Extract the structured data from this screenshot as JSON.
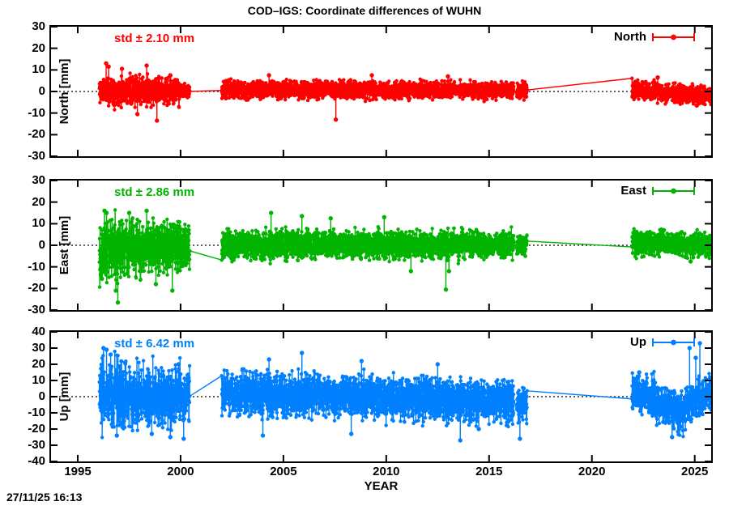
{
  "title": "COD–IGS: Coordinate differences of WUHN",
  "timestamp": "27/11/25 16:13",
  "chart_data": {
    "type": "scatter",
    "title": "COD–IGS: Coordinate differences of WUHN",
    "xlabel": "YEAR",
    "xlim": [
      1993.7,
      2025.8
    ],
    "xticks": [
      "1995",
      "2000",
      "2005",
      "2010",
      "2015",
      "2020",
      "2025"
    ],
    "xtick_values": [
      1995,
      2000,
      2005,
      2010,
      2015,
      2020,
      2025
    ],
    "grid": false,
    "zero_line": {
      "style": "dotted",
      "color": "#000000",
      "value": 0
    },
    "data_gaps": [
      [
        2000.45,
        2002.0
      ],
      [
        2016.85,
        2021.95
      ]
    ],
    "legend_position": "top-right-inside",
    "panels": [
      {
        "name": "North",
        "ylabel": "North [mm]",
        "legend_label": "North",
        "std_label": "std ± 2.10 mm",
        "std_mm": 2.1,
        "color": "#ff0000",
        "ylim": [
          -30,
          30
        ],
        "yticks": [
          "30",
          "20",
          "10",
          "0",
          "-10",
          "-20",
          "-30"
        ],
        "ytick_values": [
          30,
          20,
          10,
          0,
          -10,
          -20,
          -30
        ],
        "seed": 11,
        "band_segments": [
          {
            "t0": 1996.05,
            "t1": 1999.95,
            "mean0": 0.5,
            "mean1": 0.2,
            "amp0": 3.2,
            "amp1": 2.9,
            "lo": -12,
            "hi": 13
          },
          {
            "t0": 1999.95,
            "t1": 2000.45,
            "mean0": 0.2,
            "mean1": 0.0,
            "amp0": 1.6,
            "amp1": 1.4,
            "lo": -5,
            "hi": 5
          },
          {
            "t0": 2002.0,
            "t1": 2016.2,
            "mean0": 0.8,
            "mean1": 0.6,
            "amp0": 2.0,
            "amp1": 1.9,
            "lo": -7.5,
            "hi": 8
          },
          {
            "t0": 2016.35,
            "t1": 2016.85,
            "mean0": 0.2,
            "mean1": 0.0,
            "amp0": 1.8,
            "amp1": 1.8,
            "lo": -6,
            "hi": 6
          },
          {
            "t0": 2021.95,
            "t1": 2025.85,
            "mean0": 1.0,
            "mean1": -2.2,
            "amp0": 2.1,
            "amp1": 2.0,
            "lo": -7,
            "hi": 6.5
          }
        ],
        "outliers": [
          [
            1996.38,
            13
          ],
          [
            1996.5,
            11.5
          ],
          [
            1997.15,
            10.5
          ],
          [
            1997.9,
            -10.5
          ],
          [
            1998.35,
            12
          ],
          [
            1998.85,
            -13.5
          ],
          [
            1999.5,
            7.5
          ],
          [
            2004.3,
            7.5
          ],
          [
            2007.55,
            -13
          ],
          [
            2009.3,
            7.5
          ],
          [
            2013.0,
            7
          ],
          [
            2023.2,
            6.5
          ],
          [
            2025.1,
            -6.5
          ]
        ]
      },
      {
        "name": "East",
        "ylabel": "East [mm]",
        "legend_label": "East",
        "std_label": "std ± 2.86 mm",
        "std_mm": 2.86,
        "color": "#00b400",
        "ylim": [
          -30,
          30
        ],
        "yticks": [
          "30",
          "20",
          "10",
          "0",
          "-10",
          "-20",
          "-30"
        ],
        "ytick_values": [
          30,
          20,
          10,
          0,
          -10,
          -20,
          -30
        ],
        "seed": 22,
        "band_segments": [
          {
            "t0": 1996.05,
            "t1": 1997.2,
            "mean0": -2.0,
            "mean1": -1.5,
            "amp0": 7.0,
            "amp1": 6.5,
            "lo": -27,
            "hi": 17
          },
          {
            "t0": 1997.2,
            "t1": 2000.45,
            "mean0": -1.5,
            "mean1": -0.5,
            "amp0": 6.0,
            "amp1": 5.0,
            "lo": -22,
            "hi": 16
          },
          {
            "t0": 2002.0,
            "t1": 2016.2,
            "mean0": 0.3,
            "mean1": 0.3,
            "amp0": 3.2,
            "amp1": 3.0,
            "lo": -13,
            "hi": 14
          },
          {
            "t0": 2016.35,
            "t1": 2016.85,
            "mean0": 0.0,
            "mean1": 0.0,
            "amp0": 2.2,
            "amp1": 2.2,
            "lo": -7,
            "hi": 7
          },
          {
            "t0": 2021.95,
            "t1": 2025.85,
            "mean0": 0.8,
            "mean1": 0.0,
            "amp0": 2.6,
            "amp1": 2.6,
            "lo": -8,
            "hi": 8
          }
        ],
        "outliers": [
          [
            1996.3,
            16
          ],
          [
            1996.4,
            15
          ],
          [
            1996.85,
            -21
          ],
          [
            1996.95,
            -26.5
          ],
          [
            1997.5,
            15
          ],
          [
            1998.35,
            16
          ],
          [
            1998.8,
            -18
          ],
          [
            1999.6,
            -21
          ],
          [
            2004.4,
            15
          ],
          [
            2005.9,
            13.5
          ],
          [
            2007.3,
            12.5
          ],
          [
            2009.9,
            13
          ],
          [
            2011.2,
            -12
          ],
          [
            2012.9,
            -20.5
          ],
          [
            2013.05,
            -12
          ],
          [
            2023.5,
            7
          ],
          [
            2024.8,
            -7.5
          ]
        ]
      },
      {
        "name": "Up",
        "ylabel": "Up [mm]",
        "legend_label": "Up",
        "std_label": "std ± 6.42 mm",
        "std_mm": 6.42,
        "color": "#0080ff",
        "ylim": [
          -40,
          40
        ],
        "yticks": [
          "40",
          "30",
          "20",
          "10",
          "0",
          "-10",
          "-20",
          "-30",
          "-40"
        ],
        "ytick_values": [
          40,
          30,
          20,
          10,
          0,
          -10,
          -20,
          -30,
          -40
        ],
        "seed": 33,
        "band_segments": [
          {
            "t0": 1996.05,
            "t1": 1997.0,
            "mean0": 0,
            "mean1": 0,
            "amp0": 11.0,
            "amp1": 10.0,
            "lo": -26,
            "hi": 30
          },
          {
            "t0": 1997.0,
            "t1": 2000.45,
            "mean0": 0,
            "mean1": 0,
            "amp0": 9.5,
            "amp1": 8.5,
            "lo": -25,
            "hi": 28
          },
          {
            "t0": 2002.0,
            "t1": 2016.2,
            "mean0": 2.0,
            "mean1": -3.0,
            "amp0": 6.5,
            "amp1": 6.0,
            "lo": -23,
            "hi": 26
          },
          {
            "t0": 2016.35,
            "t1": 2016.85,
            "mean0": -4.0,
            "mean1": -4.0,
            "amp0": 5.5,
            "amp1": 5.5,
            "lo": -27,
            "hi": 6
          },
          {
            "t0": 2021.95,
            "t1": 2023.1,
            "mean0": 2.0,
            "mean1": 1.0,
            "amp0": 5.5,
            "amp1": 6.0,
            "lo": -12,
            "hi": 16
          },
          {
            "t0": 2023.1,
            "t1": 2024.55,
            "mean0": -3.0,
            "mean1": -10.0,
            "amp0": 6.0,
            "amp1": 6.0,
            "lo": -26,
            "hi": 6
          },
          {
            "t0": 2024.55,
            "t1": 2025.1,
            "mean0": -6.0,
            "mean1": -2.0,
            "amp0": 6.0,
            "amp1": 6.0,
            "lo": -16,
            "hi": 12
          },
          {
            "t0": 2025.1,
            "t1": 2025.85,
            "mean0": -2.0,
            "mean1": 4.0,
            "amp0": 6.0,
            "amp1": 6.0,
            "lo": -12,
            "hi": 18
          }
        ],
        "outliers": [
          [
            1996.25,
            30
          ],
          [
            1996.4,
            29
          ],
          [
            1996.6,
            26
          ],
          [
            1996.9,
            -24
          ],
          [
            1997.3,
            21
          ],
          [
            1998.6,
            -23
          ],
          [
            1999.5,
            -25
          ],
          [
            1999.9,
            20
          ],
          [
            2000.15,
            -26
          ],
          [
            2004.0,
            -24
          ],
          [
            2004.3,
            23
          ],
          [
            2005.9,
            27
          ],
          [
            2008.3,
            -23
          ],
          [
            2008.8,
            22
          ],
          [
            2012.5,
            20
          ],
          [
            2013.6,
            -27
          ],
          [
            2014.5,
            -20
          ],
          [
            2016.5,
            -26
          ],
          [
            2022.3,
            15
          ],
          [
            2023.9,
            -25
          ],
          [
            2024.75,
            30
          ],
          [
            2025.05,
            24
          ],
          [
            2025.25,
            33
          ]
        ]
      }
    ]
  }
}
